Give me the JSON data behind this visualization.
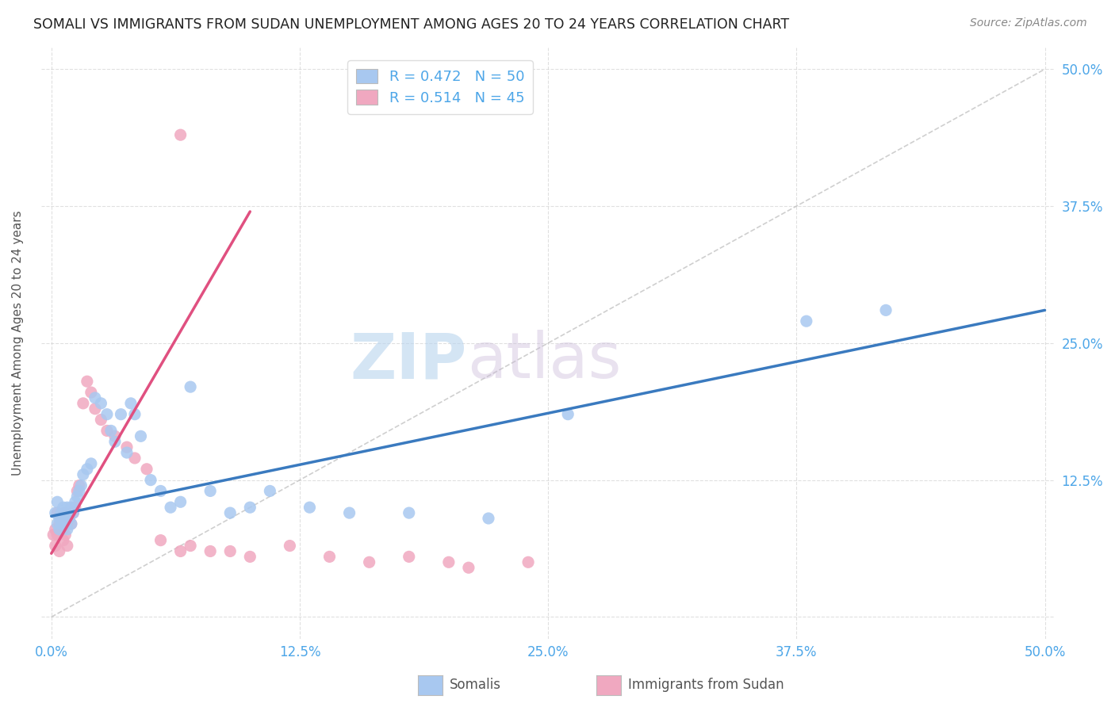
{
  "title": "SOMALI VS IMMIGRANTS FROM SUDAN UNEMPLOYMENT AMONG AGES 20 TO 24 YEARS CORRELATION CHART",
  "source": "Source: ZipAtlas.com",
  "ylabel": "Unemployment Among Ages 20 to 24 years",
  "xlabel_somali": "Somalis",
  "xlabel_sudan": "Immigrants from Sudan",
  "xlim": [
    -0.005,
    0.505
  ],
  "ylim": [
    -0.02,
    0.52
  ],
  "xticks": [
    0.0,
    0.125,
    0.25,
    0.375,
    0.5
  ],
  "yticks": [
    0.0,
    0.125,
    0.25,
    0.375,
    0.5
  ],
  "xticklabels": [
    "0.0%",
    "12.5%",
    "25.0%",
    "37.5%",
    "50.0%"
  ],
  "yticklabels": [
    "",
    "12.5%",
    "25.0%",
    "37.5%",
    "50.0%"
  ],
  "somali_color": "#a8c8f0",
  "sudan_color": "#f0a8c0",
  "somali_line_color": "#3a7abf",
  "sudan_line_color": "#e05080",
  "somali_R": 0.472,
  "somali_N": 50,
  "sudan_R": 0.514,
  "sudan_N": 45,
  "watermark_zip": "ZIP",
  "watermark_atlas": "atlas",
  "background_color": "#ffffff",
  "grid_color": "#cccccc",
  "title_color": "#222222",
  "axis_label_color": "#555555",
  "tick_label_color": "#4da6e8",
  "legend_r_color": "#4da6e8",
  "legend_n_color": "#22cc22",
  "somali_scatter_x": [
    0.002,
    0.003,
    0.003,
    0.004,
    0.004,
    0.005,
    0.005,
    0.006,
    0.006,
    0.007,
    0.007,
    0.008,
    0.008,
    0.009,
    0.01,
    0.01,
    0.011,
    0.012,
    0.013,
    0.014,
    0.015,
    0.016,
    0.018,
    0.02,
    0.022,
    0.025,
    0.028,
    0.03,
    0.032,
    0.035,
    0.038,
    0.04,
    0.042,
    0.045,
    0.05,
    0.055,
    0.06,
    0.065,
    0.07,
    0.08,
    0.09,
    0.1,
    0.11,
    0.13,
    0.15,
    0.18,
    0.22,
    0.26,
    0.38,
    0.42
  ],
  "somali_scatter_y": [
    0.095,
    0.085,
    0.105,
    0.09,
    0.08,
    0.095,
    0.085,
    0.09,
    0.1,
    0.085,
    0.095,
    0.08,
    0.1,
    0.09,
    0.1,
    0.085,
    0.095,
    0.105,
    0.11,
    0.115,
    0.12,
    0.13,
    0.135,
    0.14,
    0.2,
    0.195,
    0.185,
    0.17,
    0.16,
    0.185,
    0.15,
    0.195,
    0.185,
    0.165,
    0.125,
    0.115,
    0.1,
    0.105,
    0.21,
    0.115,
    0.095,
    0.1,
    0.115,
    0.1,
    0.095,
    0.095,
    0.09,
    0.185,
    0.27,
    0.28
  ],
  "sudan_scatter_x": [
    0.001,
    0.002,
    0.002,
    0.003,
    0.003,
    0.004,
    0.004,
    0.005,
    0.005,
    0.006,
    0.006,
    0.007,
    0.007,
    0.008,
    0.008,
    0.009,
    0.01,
    0.011,
    0.012,
    0.013,
    0.014,
    0.016,
    0.018,
    0.02,
    0.022,
    0.025,
    0.028,
    0.032,
    0.038,
    0.042,
    0.048,
    0.055,
    0.065,
    0.07,
    0.08,
    0.09,
    0.1,
    0.12,
    0.14,
    0.16,
    0.18,
    0.2,
    0.21,
    0.24,
    0.065
  ],
  "sudan_scatter_y": [
    0.075,
    0.08,
    0.065,
    0.095,
    0.075,
    0.06,
    0.085,
    0.08,
    0.09,
    0.07,
    0.08,
    0.095,
    0.075,
    0.085,
    0.065,
    0.09,
    0.085,
    0.095,
    0.1,
    0.115,
    0.12,
    0.195,
    0.215,
    0.205,
    0.19,
    0.18,
    0.17,
    0.165,
    0.155,
    0.145,
    0.135,
    0.07,
    0.06,
    0.065,
    0.06,
    0.06,
    0.055,
    0.065,
    0.055,
    0.05,
    0.055,
    0.05,
    0.045,
    0.05,
    0.44
  ],
  "somali_line_x": [
    0.0,
    0.5
  ],
  "somali_line_y": [
    0.092,
    0.28
  ],
  "sudan_line_x": [
    0.0,
    0.1
  ],
  "sudan_line_y": [
    0.058,
    0.37
  ],
  "diag_line_x": [
    0.0,
    0.5
  ],
  "diag_line_y": [
    0.0,
    0.5
  ]
}
